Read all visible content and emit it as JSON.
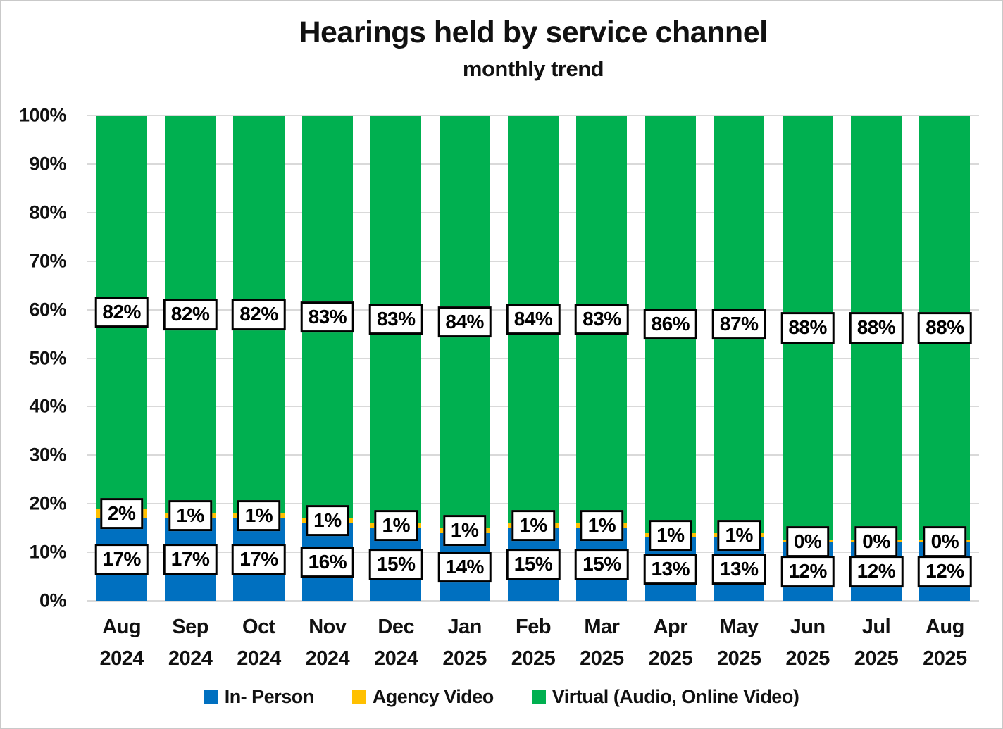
{
  "chart_data": {
    "type": "bar",
    "stacked": true,
    "percent_stack": true,
    "title": "Hearings held by service channel",
    "subtitle": "monthly trend",
    "categories": [
      {
        "month": "Aug",
        "year": "2024"
      },
      {
        "month": "Sep",
        "year": "2024"
      },
      {
        "month": "Oct",
        "year": "2024"
      },
      {
        "month": "Nov",
        "year": "2024"
      },
      {
        "month": "Dec",
        "year": "2024"
      },
      {
        "month": "Jan",
        "year": "2025"
      },
      {
        "month": "Feb",
        "year": "2025"
      },
      {
        "month": "Mar",
        "year": "2025"
      },
      {
        "month": "Apr",
        "year": "2025"
      },
      {
        "month": "May",
        "year": "2025"
      },
      {
        "month": "Jun",
        "year": "2025"
      },
      {
        "month": "Jul",
        "year": "2025"
      },
      {
        "month": "Aug",
        "year": "2025"
      }
    ],
    "series": [
      {
        "name": "In- Person",
        "color": "#0070C0",
        "values": [
          17,
          17,
          17,
          16,
          15,
          14,
          15,
          15,
          13,
          13,
          12,
          12,
          12
        ]
      },
      {
        "name": "Agency Video",
        "color": "#FFC000",
        "values": [
          2,
          1,
          1,
          1,
          1,
          1,
          1,
          1,
          1,
          1,
          0,
          0,
          0
        ]
      },
      {
        "name": "Virtual (Audio, Online Video)",
        "color": "#00B050",
        "values": [
          82,
          82,
          82,
          83,
          83,
          84,
          84,
          83,
          86,
          87,
          88,
          88,
          88
        ]
      }
    ],
    "value_suffix": "%",
    "ylim": [
      0,
      100
    ],
    "y_ticks": [
      "0%",
      "10%",
      "20%",
      "30%",
      "40%",
      "50%",
      "60%",
      "70%",
      "80%",
      "90%",
      "100%"
    ],
    "grid": true,
    "gridline_color": "#D9D9D9",
    "legend_position": "bottom",
    "data_label_style": {
      "background": "#FFFFFF",
      "border_color": "#000000"
    }
  }
}
